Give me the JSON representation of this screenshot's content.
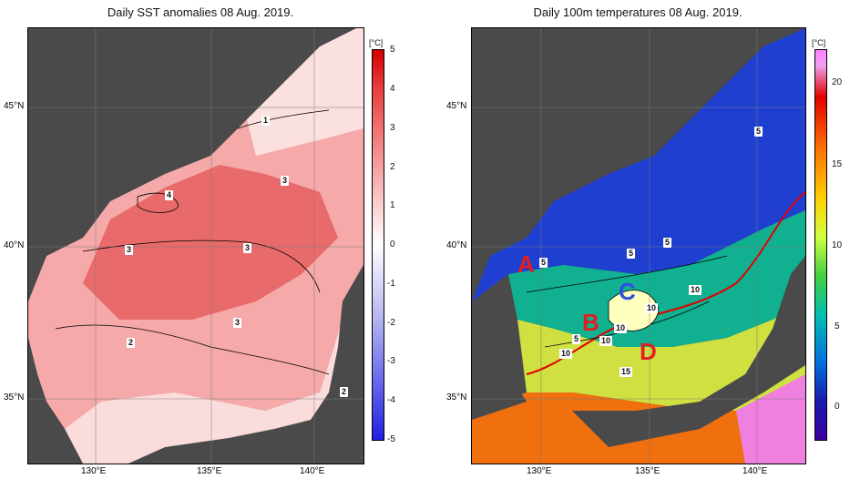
{
  "left_panel": {
    "title": "Daily SST anomalies 08 Aug. 2019.",
    "unit": "[°C]",
    "colorbar_ticks": [
      "5",
      "4",
      "3",
      "2",
      "1",
      "0",
      "-1",
      "-2",
      "-3",
      "-4",
      "-5"
    ],
    "contour_labels": [
      "1",
      "3",
      "4",
      "3",
      "3",
      "3",
      "2",
      "2"
    ],
    "lat_labels": [
      "45°N",
      "40°N",
      "35°N"
    ],
    "lon_labels": [
      "130°E",
      "135°E",
      "140°E"
    ]
  },
  "right_panel": {
    "title": "Daily 100m temperatures 08 Aug. 2019.",
    "unit": "[°C]",
    "colorbar_ticks": [
      "20",
      "15",
      "10",
      "5",
      "0"
    ],
    "contour_labels": [
      "5",
      "5",
      "5",
      "5",
      "10",
      "10",
      "10",
      "10",
      "5",
      "10",
      "15"
    ],
    "region_letters": [
      "A",
      "B",
      "C",
      "D"
    ],
    "lat_labels": [
      "45°N",
      "40°N",
      "35°N"
    ],
    "lon_labels": [
      "130°E",
      "135°E",
      "140°E"
    ]
  },
  "colors": {
    "anomaly_scale": [
      "#d40000",
      "#e84040",
      "#f07070",
      "#f5a0a0",
      "#fad0d0",
      "#ffffff",
      "#d8d8f8",
      "#b0b0f0",
      "#8080ee",
      "#5050e8",
      "#2020e0"
    ],
    "temp_scale": [
      "#ff80ff",
      "#e00000",
      "#ff7000",
      "#ffd000",
      "#d0ff40",
      "#40d040",
      "#00c0b0",
      "#0070e0",
      "#1a1ab0",
      "#3a00a0"
    ],
    "land": "#4a4a4a",
    "front_line": "#e00000",
    "region_letter": "#e02020",
    "region_letter_C": "#3050e0"
  }
}
